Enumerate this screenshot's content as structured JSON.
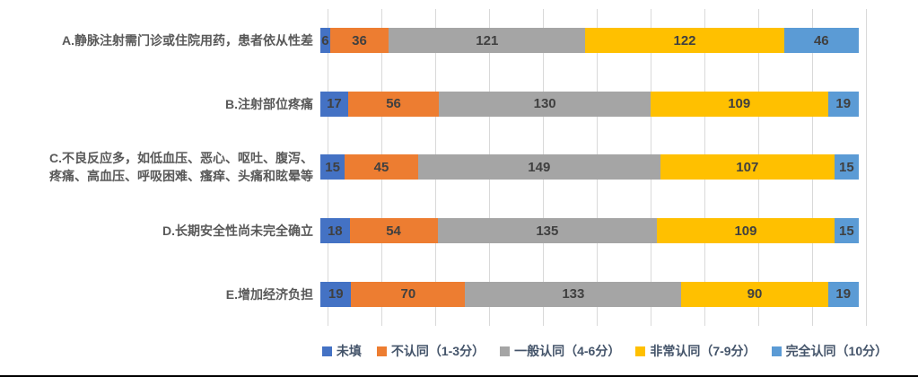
{
  "chart_data": {
    "type": "bar",
    "orientation": "horizontal",
    "stacked": true,
    "title": "",
    "xlabel": "",
    "ylabel": "",
    "axis_max": 331,
    "grid": true,
    "gridline_count": 11,
    "legend_position": "bottom",
    "categories": [
      "A.静脉注射需门诊或住院用药，患者依从性差",
      "B.注射部位疼痛",
      "C.不良反应多，如低血压、恶心、呕吐、腹泻、\n疼痛、高血压、呼吸困难、瘙痒、头痛和眩晕等",
      "D.长期安全性尚未完全确立",
      "E.增加经济负担"
    ],
    "series": [
      {
        "name": "未填",
        "color": "#4472C4",
        "values": [
          6,
          17,
          15,
          18,
          19
        ]
      },
      {
        "name": "不认同（1-3分）",
        "color": "#ED7D31",
        "values": [
          36,
          56,
          45,
          54,
          70
        ]
      },
      {
        "name": "一般认同（4-6分）",
        "color": "#A5A5A5",
        "values": [
          121,
          130,
          149,
          135,
          133
        ]
      },
      {
        "name": "非常认同（7-9分）",
        "color": "#FFC000",
        "values": [
          122,
          109,
          107,
          109,
          90
        ]
      },
      {
        "name": "完全认同（10分）",
        "color": "#5B9BD5",
        "values": [
          46,
          19,
          15,
          15,
          19
        ]
      }
    ],
    "row_totals": [
      331,
      331,
      331,
      331,
      331
    ]
  },
  "colors": {
    "background": "#FFFFFF",
    "gridline": "#D9D9D9",
    "data_label": "#404040",
    "category_label": "#595959",
    "legend_text": "#44546A",
    "bottom_border": "#000000"
  }
}
